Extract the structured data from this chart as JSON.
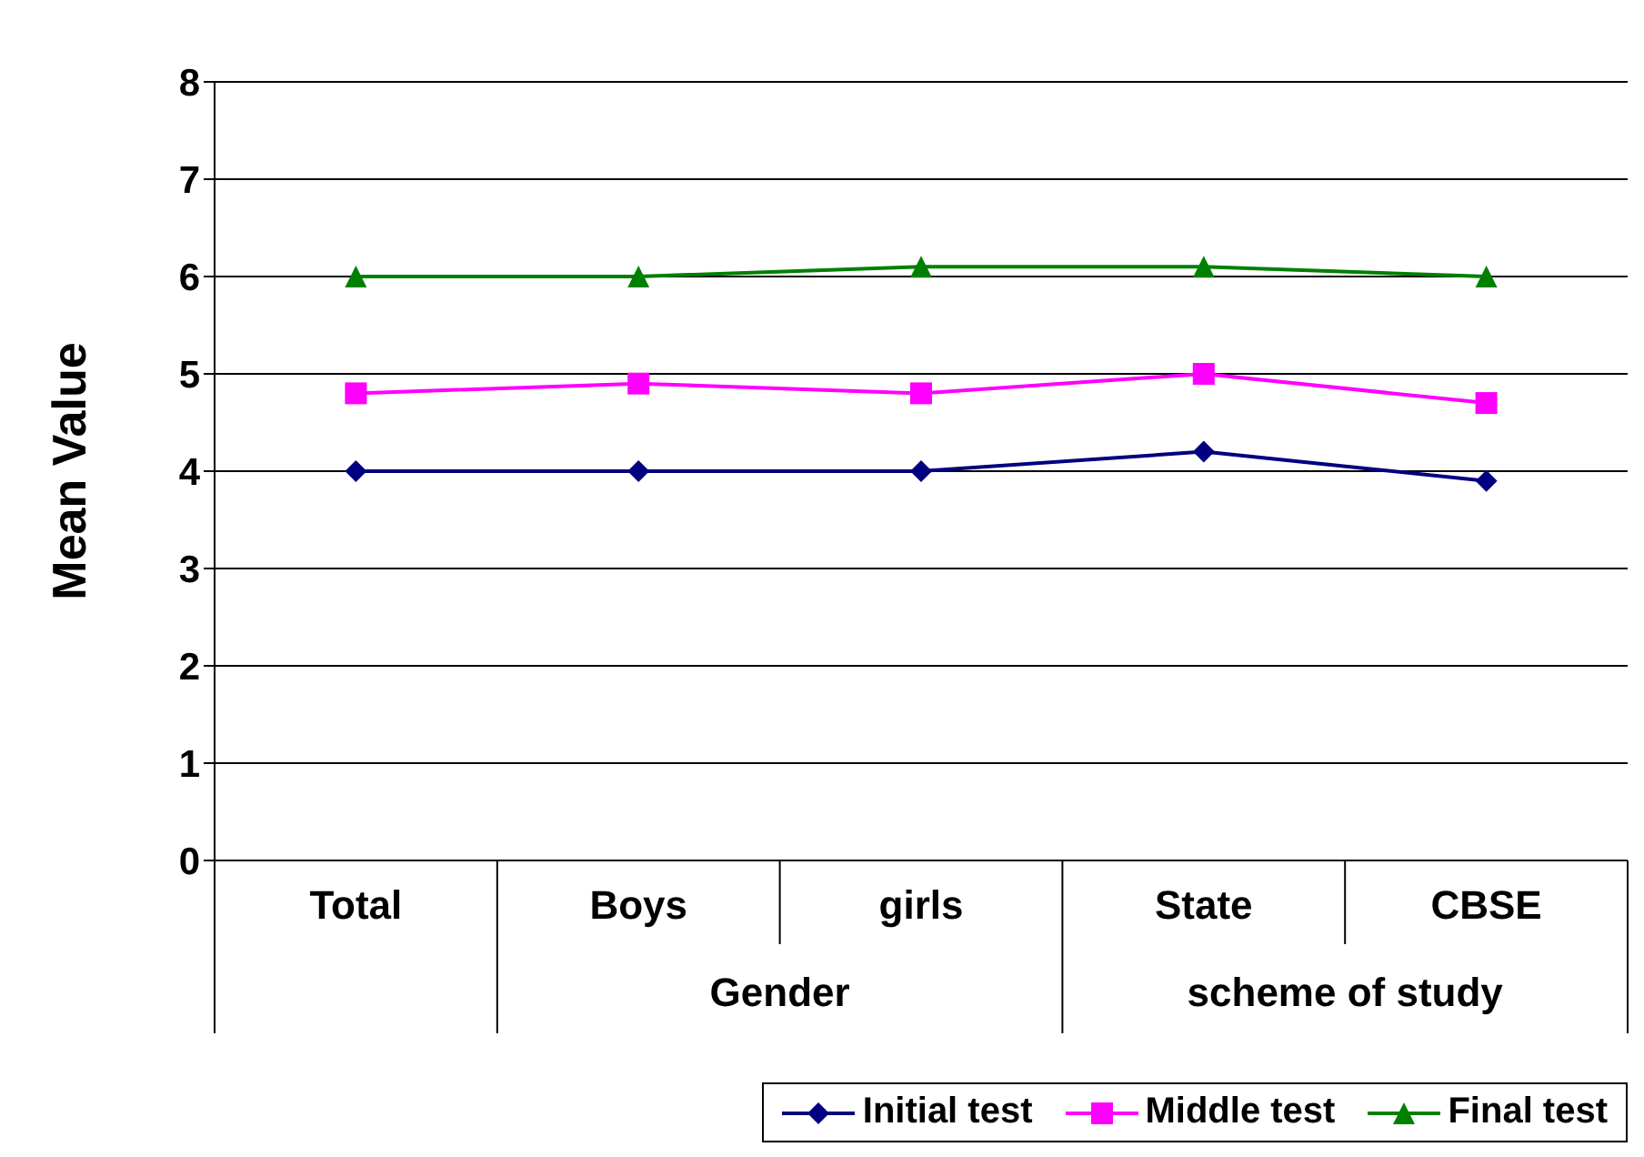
{
  "chart_data": {
    "type": "line",
    "ylabel": "Mean Value",
    "categories": [
      "Total",
      "Boys",
      "girls",
      "State",
      "CBSE"
    ],
    "annotations": [
      "Gender",
      "scheme of study"
    ],
    "series": [
      {
        "name": "Initial test",
        "color": "#000080",
        "values": [
          4,
          4,
          4,
          4.2,
          3.9
        ],
        "marker": "diamond"
      },
      {
        "name": "Middle test",
        "color": "#ff00ff",
        "values": [
          4.8,
          4.9,
          4.8,
          5.0,
          4.7
        ],
        "marker": "square"
      },
      {
        "name": "Final test",
        "color": "#008000",
        "values": [
          6,
          6,
          6.1,
          6.1,
          6.0
        ],
        "marker": "triangle"
      }
    ],
    "ylim": [
      0,
      8
    ],
    "yticks": [
      0,
      1,
      2,
      3,
      4,
      5,
      6,
      7,
      8
    ],
    "grid": "y",
    "legend": "bottom right"
  }
}
